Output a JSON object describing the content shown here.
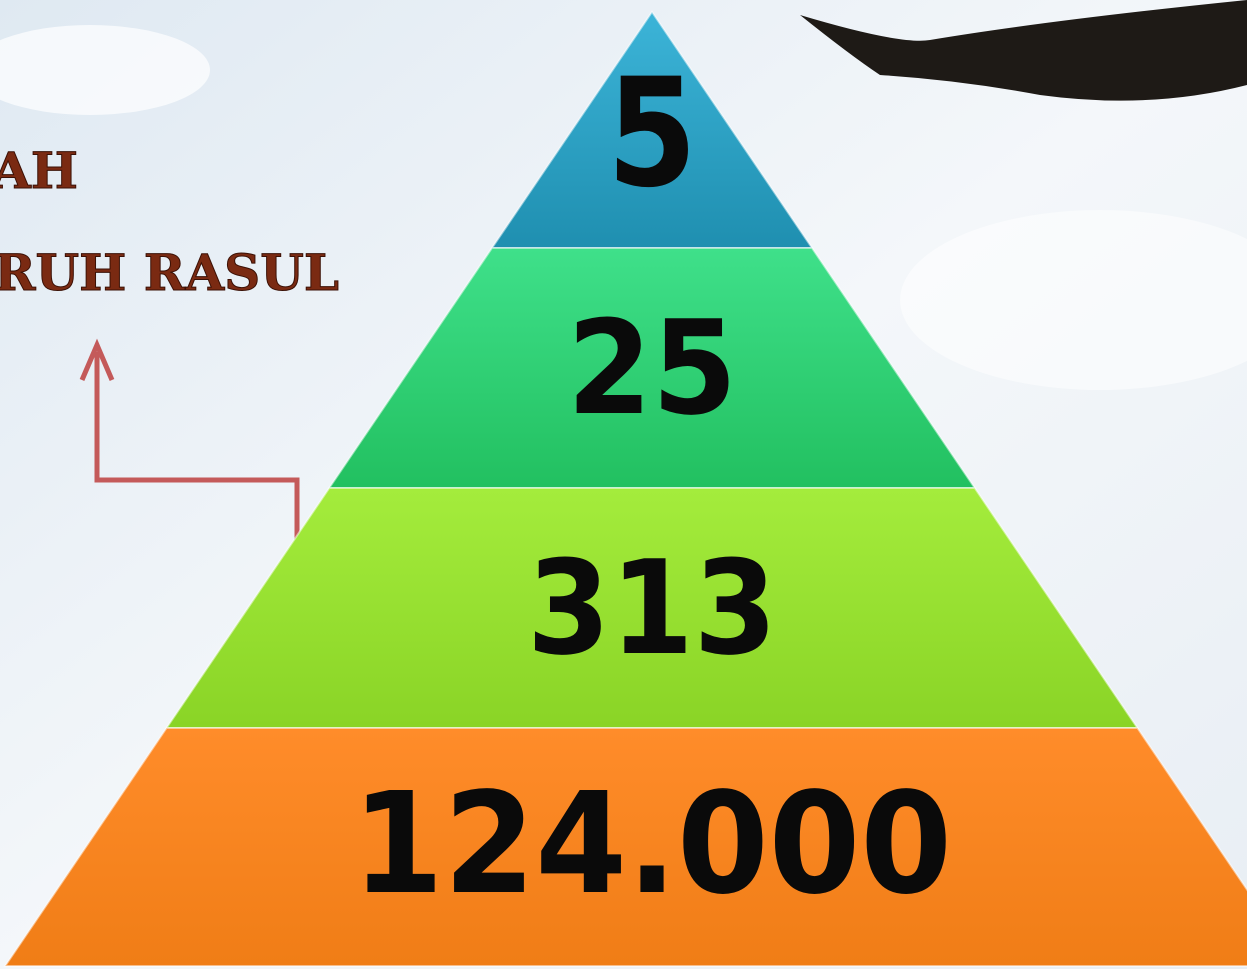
{
  "heading": {
    "line1": "AH",
    "line2": "RUH RASUL"
  },
  "pyramid": {
    "levels": [
      {
        "label": "5"
      },
      {
        "label": "25"
      },
      {
        "label": "313"
      },
      {
        "label": "124.000"
      }
    ]
  }
}
